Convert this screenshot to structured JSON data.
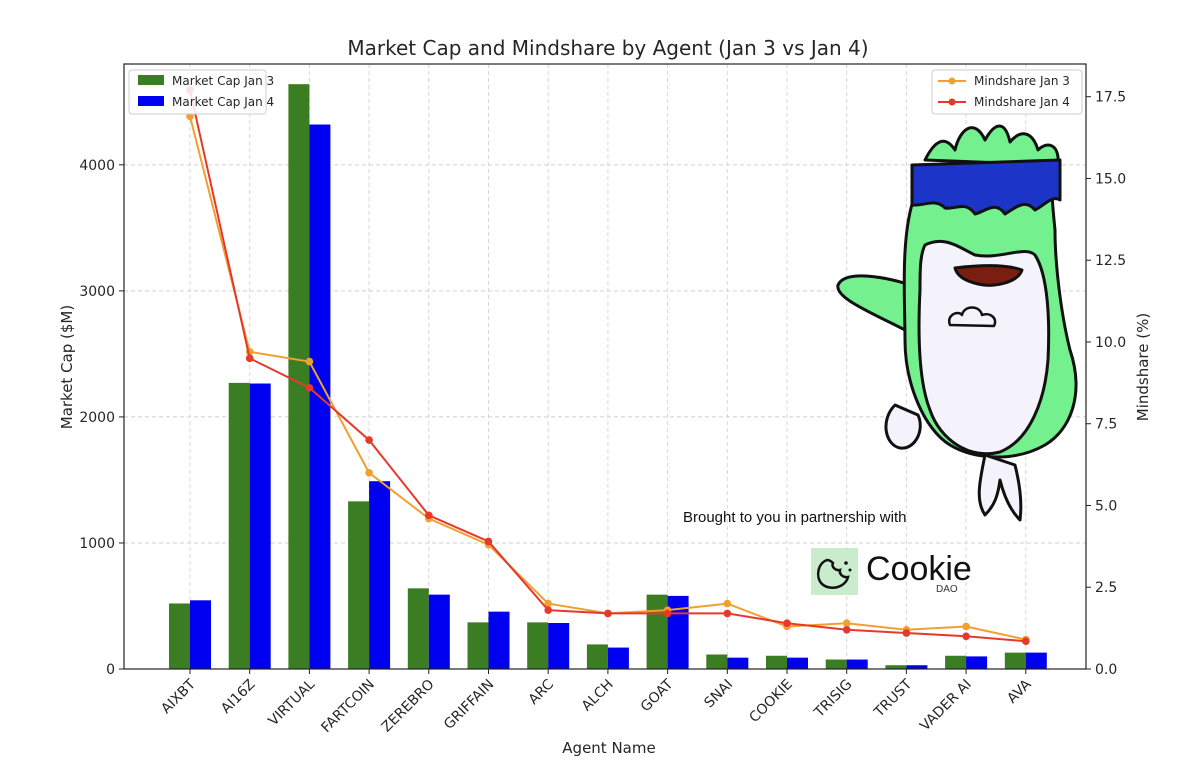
{
  "chart_data": {
    "type": "bar",
    "title": "Market Cap and Mindshare by Agent (Jan 3 vs Jan 4)",
    "xlabel": "Agent Name",
    "ylabel": "Market Cap ($M)",
    "y2label": "Mindshare (%)",
    "categories": [
      "AIXBT",
      "AI16Z",
      "VIRTUAL",
      "FARTCOIN",
      "ZEREBRO",
      "GRIFFAIN",
      "ARC",
      "ALCH",
      "GOAT",
      "SNAI",
      "COOKIE",
      "TRISIG",
      "TRUST",
      "VADER AI",
      "AVA"
    ],
    "ylim": [
      0,
      4800
    ],
    "y2lim": [
      0,
      18.5
    ],
    "yticks": [
      0,
      1000,
      2000,
      3000,
      4000
    ],
    "y2ticks": [
      "0.0",
      "2.5",
      "5.0",
      "7.5",
      "10.0",
      "12.5",
      "15.0",
      "17.5"
    ],
    "grid": true,
    "bar_series": [
      {
        "name": "Market Cap Jan 3",
        "color": "#3a7d22",
        "values": [
          520,
          2270,
          4640,
          1330,
          640,
          370,
          370,
          195,
          590,
          115,
          105,
          75,
          30,
          105,
          130
        ]
      },
      {
        "name": "Market Cap Jan 4",
        "color": "#0000f0",
        "values": [
          545,
          2265,
          4320,
          1490,
          590,
          455,
          365,
          170,
          580,
          90,
          90,
          75,
          30,
          100,
          130
        ]
      }
    ],
    "line_series": [
      {
        "name": "Mindshare Jan 3",
        "color": "#f0a030",
        "values": [
          16.9,
          9.7,
          9.4,
          6.0,
          4.6,
          3.8,
          2.0,
          1.7,
          1.8,
          2.0,
          1.3,
          1.4,
          1.2,
          1.3,
          0.9
        ]
      },
      {
        "name": "Mindshare Jan 4",
        "color": "#e8382a",
        "values": [
          17.7,
          9.5,
          8.6,
          7.0,
          4.7,
          3.9,
          1.8,
          1.7,
          1.7,
          1.7,
          1.4,
          1.2,
          1.1,
          1.0,
          0.85
        ]
      }
    ],
    "legend_left_position": "top-left",
    "legend_right_position": "top-right"
  },
  "annotation": {
    "partner_text": "Brought to you in partnership with",
    "brand_name": "Cookie",
    "brand_sub": "DAO"
  },
  "colors": {
    "mascot_green": "#74f08e",
    "mascot_visor": "#1c35c8",
    "mascot_body": "#f4f2fa",
    "logo_bg": "#c9eccd"
  }
}
